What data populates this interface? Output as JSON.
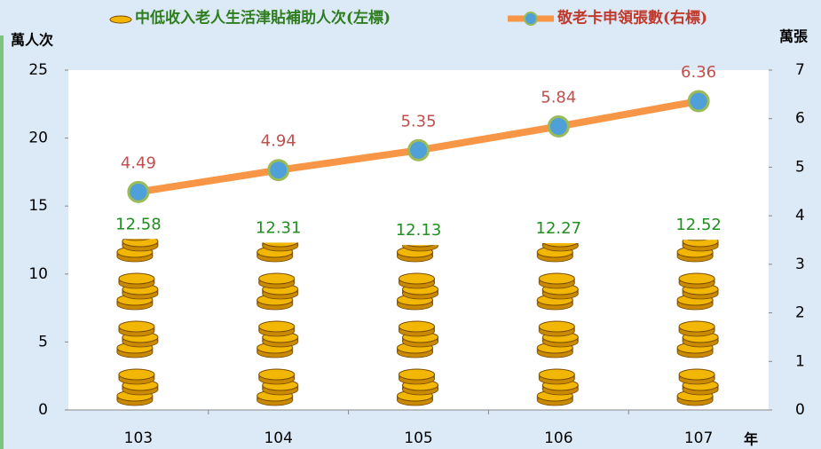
{
  "chart_data": {
    "type": "combo",
    "y_label": "萬人次",
    "y2_label": "萬張",
    "x_label": "年",
    "categories": [
      "103",
      "104",
      "105",
      "106",
      "107"
    ],
    "series": [
      {
        "name": "中低收入老人生活津貼補助人次(左標)",
        "type": "bar",
        "color": "#f2b705",
        "values": [
          12.58,
          12.31,
          12.13,
          12.27,
          12.52
        ]
      },
      {
        "name": "敬老卡申領張數(右標)",
        "type": "line",
        "axis": "y2",
        "color": "#f79646",
        "marker_color": "#4f9fd8",
        "values": [
          4.49,
          4.94,
          5.35,
          5.84,
          6.36
        ]
      }
    ],
    "ylim": [
      0,
      25
    ],
    "yticks": [
      0,
      5,
      10,
      15,
      20,
      25
    ],
    "y2lim": [
      0,
      7
    ],
    "y2ticks": [
      0,
      1,
      2,
      3,
      4,
      5,
      6,
      7
    ]
  }
}
